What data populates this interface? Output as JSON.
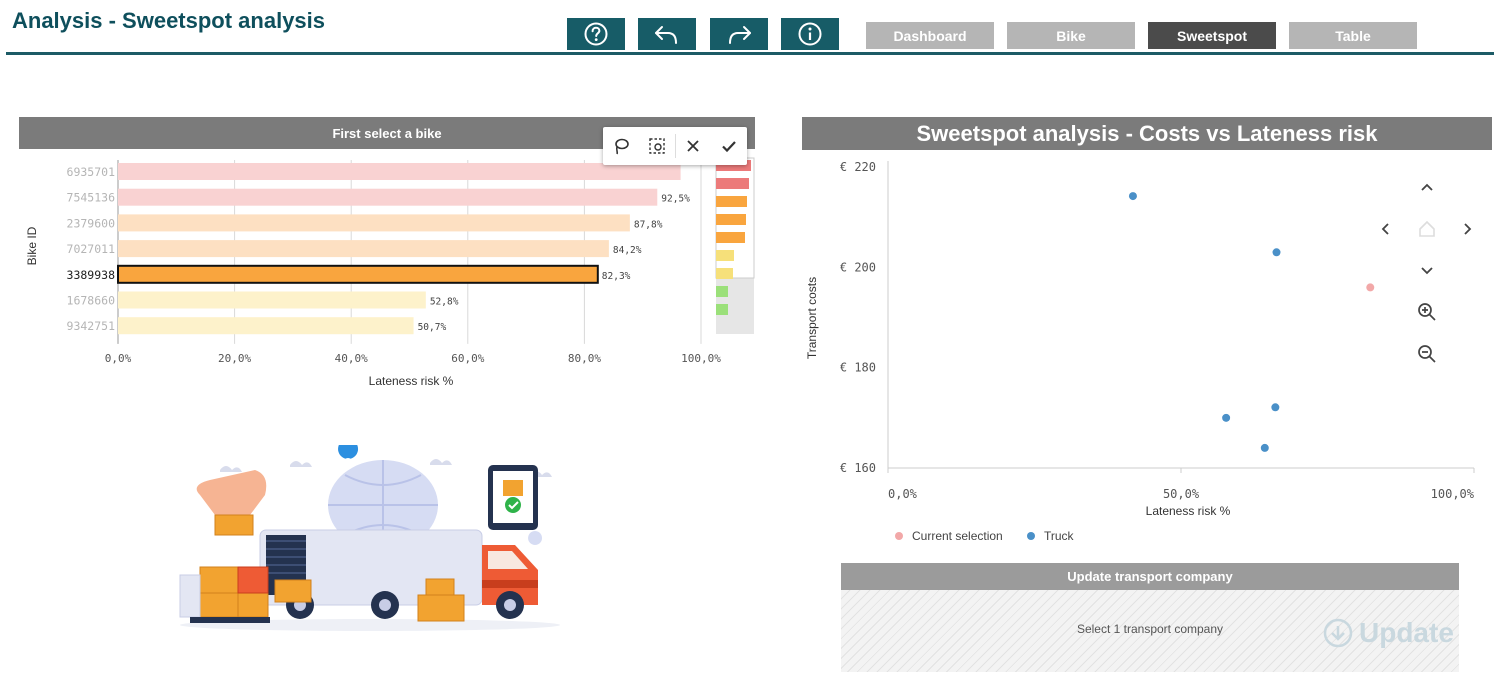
{
  "header": {
    "title": "Analysis - Sweetspot analysis",
    "tabs": [
      {
        "label": "Dashboard",
        "active": false
      },
      {
        "label": "Bike",
        "active": false
      },
      {
        "label": "Sweetspot",
        "active": true
      },
      {
        "label": "Table",
        "active": false
      }
    ]
  },
  "toolbar": {
    "icons": [
      "help-icon",
      "undo-icon",
      "redo-icon",
      "info-icon"
    ],
    "accent_color": "#175c67"
  },
  "left_panel": {
    "title": "First select a bike",
    "selection_tools": [
      "lasso-icon",
      "select-region-icon",
      "cancel-icon",
      "confirm-icon"
    ]
  },
  "right_panel": {
    "title": "Sweetspot analysis - Costs vs Lateness risk",
    "nav_controls": [
      "chevron-up-icon",
      "chevron-left-icon",
      "home-icon",
      "chevron-right-icon",
      "chevron-down-icon",
      "zoom-in-icon",
      "zoom-out-icon"
    ]
  },
  "update_box": {
    "title": "Update transport company",
    "message": "Select 1 transport company",
    "button_label": "Update"
  },
  "chart_data": [
    {
      "type": "bar",
      "orientation": "horizontal",
      "ylabel": "Bike ID",
      "xlabel": "Lateness risk %",
      "xlim": [
        0,
        100
      ],
      "x_ticks": [
        "0,0%",
        "20,0%",
        "40,0%",
        "60,0%",
        "80,0%",
        "100,0%"
      ],
      "categories": [
        "6935701",
        "7545136",
        "2379600",
        "7027011",
        "3389938",
        "1678660",
        "9342751"
      ],
      "values": [
        96.5,
        92.5,
        87.8,
        84.2,
        82.3,
        52.8,
        50.7
      ],
      "data_labels": [
        "",
        "92,5%",
        "87,8%",
        "84,2%",
        "82,3%",
        "52,8%",
        "50,7%"
      ],
      "colors": [
        "#f9d2d2",
        "#f9d2d2",
        "#fde0c2",
        "#fde0c2",
        "#f9a53e",
        "#fdf2cb",
        "#fdf2cb"
      ],
      "selected": "3389938",
      "grid": true
    },
    {
      "type": "scatter",
      "xlabel": "Lateness risk %",
      "ylabel": "Transport costs",
      "xlim": [
        0,
        100
      ],
      "ylim": [
        160,
        220
      ],
      "x_ticks": [
        "0,0%",
        "50,0%",
        "100,0%"
      ],
      "y_ticks": [
        "€ 160",
        "€ 180",
        "€ 200",
        "€ 220"
      ],
      "legend_position": "bottom-left",
      "series": [
        {
          "name": "Current selection",
          "color": "#f2a8a8",
          "points": [
            {
              "x": 82.3,
              "y": 196
            }
          ]
        },
        {
          "name": "Truck",
          "color": "#4a90c8",
          "points": [
            {
              "x": 41.8,
              "y": 214.2
            },
            {
              "x": 66.3,
              "y": 203
            },
            {
              "x": 57.7,
              "y": 170
            },
            {
              "x": 66.1,
              "y": 172.1
            },
            {
              "x": 64.3,
              "y": 164
            }
          ]
        }
      ]
    }
  ]
}
